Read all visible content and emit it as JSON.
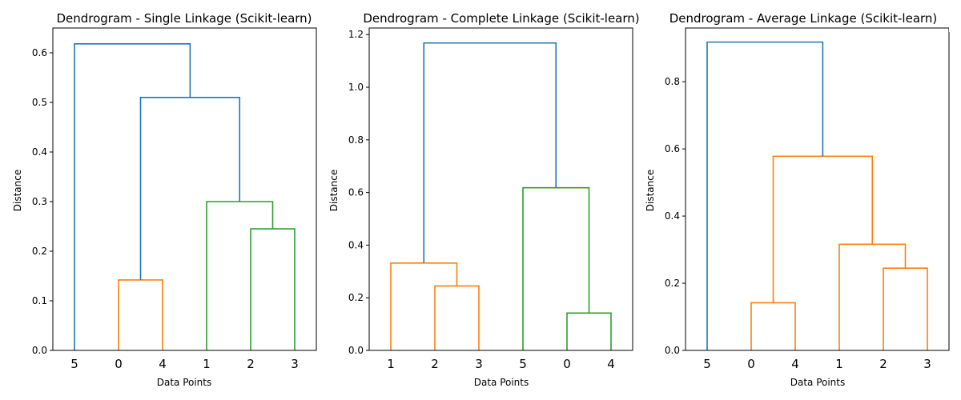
{
  "chart_data": [
    {
      "type": "dendrogram",
      "title": "Dendrogram - Single Linkage (Scikit-learn)",
      "xlabel": "Data Points",
      "ylabel": "Distance",
      "ylim": [
        0,
        0.65
      ],
      "yticks": [
        0.0,
        0.1,
        0.2,
        0.3,
        0.4,
        0.5,
        0.6
      ],
      "ytick_labels": [
        "0.0",
        "0.1",
        "0.2",
        "0.3",
        "0.4",
        "0.5",
        "0.6"
      ],
      "leaf_order": [
        "5",
        "0",
        "4",
        "1",
        "2",
        "3"
      ],
      "links": [
        {
          "left": 1,
          "right": 2,
          "height": 0.142,
          "color": "#ff7f0e"
        },
        {
          "left": 4,
          "right": 5,
          "height": 0.245,
          "color": "#2ca02c"
        },
        {
          "left": 3,
          "right": "4-5",
          "height": 0.3,
          "color": "#2ca02c"
        },
        {
          "left": "1-2",
          "right": "3-5",
          "height": 0.51,
          "color": "#1f77b4"
        },
        {
          "left": 0,
          "right": "1-5",
          "height": 0.618,
          "color": "#1f77b4"
        }
      ]
    },
    {
      "type": "dendrogram",
      "title": "Dendrogram - Complete Linkage (Scikit-learn)",
      "xlabel": "Data Points",
      "ylabel": "Distance",
      "ylim": [
        0,
        1.225
      ],
      "yticks": [
        0.0,
        0.2,
        0.4,
        0.6,
        0.8,
        1.0,
        1.2
      ],
      "ytick_labels": [
        "0.0",
        "0.2",
        "0.4",
        "0.6",
        "0.8",
        "1.0",
        "1.2"
      ],
      "leaf_order": [
        "1",
        "2",
        "3",
        "5",
        "0",
        "4"
      ],
      "links": [
        {
          "left": 1,
          "right": 2,
          "height": 0.245,
          "color": "#ff7f0e"
        },
        {
          "left": 0,
          "right": "1-2",
          "height": 0.332,
          "color": "#ff7f0e"
        },
        {
          "left": 4,
          "right": 5,
          "height": 0.142,
          "color": "#2ca02c"
        },
        {
          "left": 3,
          "right": "4-5",
          "height": 0.618,
          "color": "#2ca02c"
        },
        {
          "left": "0-2",
          "right": "3-5",
          "height": 1.168,
          "color": "#1f77b4"
        }
      ]
    },
    {
      "type": "dendrogram",
      "title": "Dendrogram - Average Linkage (Scikit-learn)",
      "xlabel": "Data Points",
      "ylabel": "Distance",
      "ylim": [
        0,
        0.96
      ],
      "yticks": [
        0.0,
        0.2,
        0.4,
        0.6,
        0.8
      ],
      "ytick_labels": [
        "0.0",
        "0.2",
        "0.4",
        "0.6",
        "0.8"
      ],
      "leaf_order": [
        "5",
        "0",
        "4",
        "1",
        "2",
        "3"
      ],
      "links": [
        {
          "left": 1,
          "right": 2,
          "height": 0.142,
          "color": "#ff7f0e"
        },
        {
          "left": 4,
          "right": 5,
          "height": 0.245,
          "color": "#ff7f0e"
        },
        {
          "left": 3,
          "right": "4-5",
          "height": 0.316,
          "color": "#ff7f0e"
        },
        {
          "left": "1-2",
          "right": "3-5",
          "height": 0.578,
          "color": "#ff7f0e"
        },
        {
          "left": 0,
          "right": "1-5",
          "height": 0.918,
          "color": "#1f77b4"
        }
      ]
    }
  ]
}
